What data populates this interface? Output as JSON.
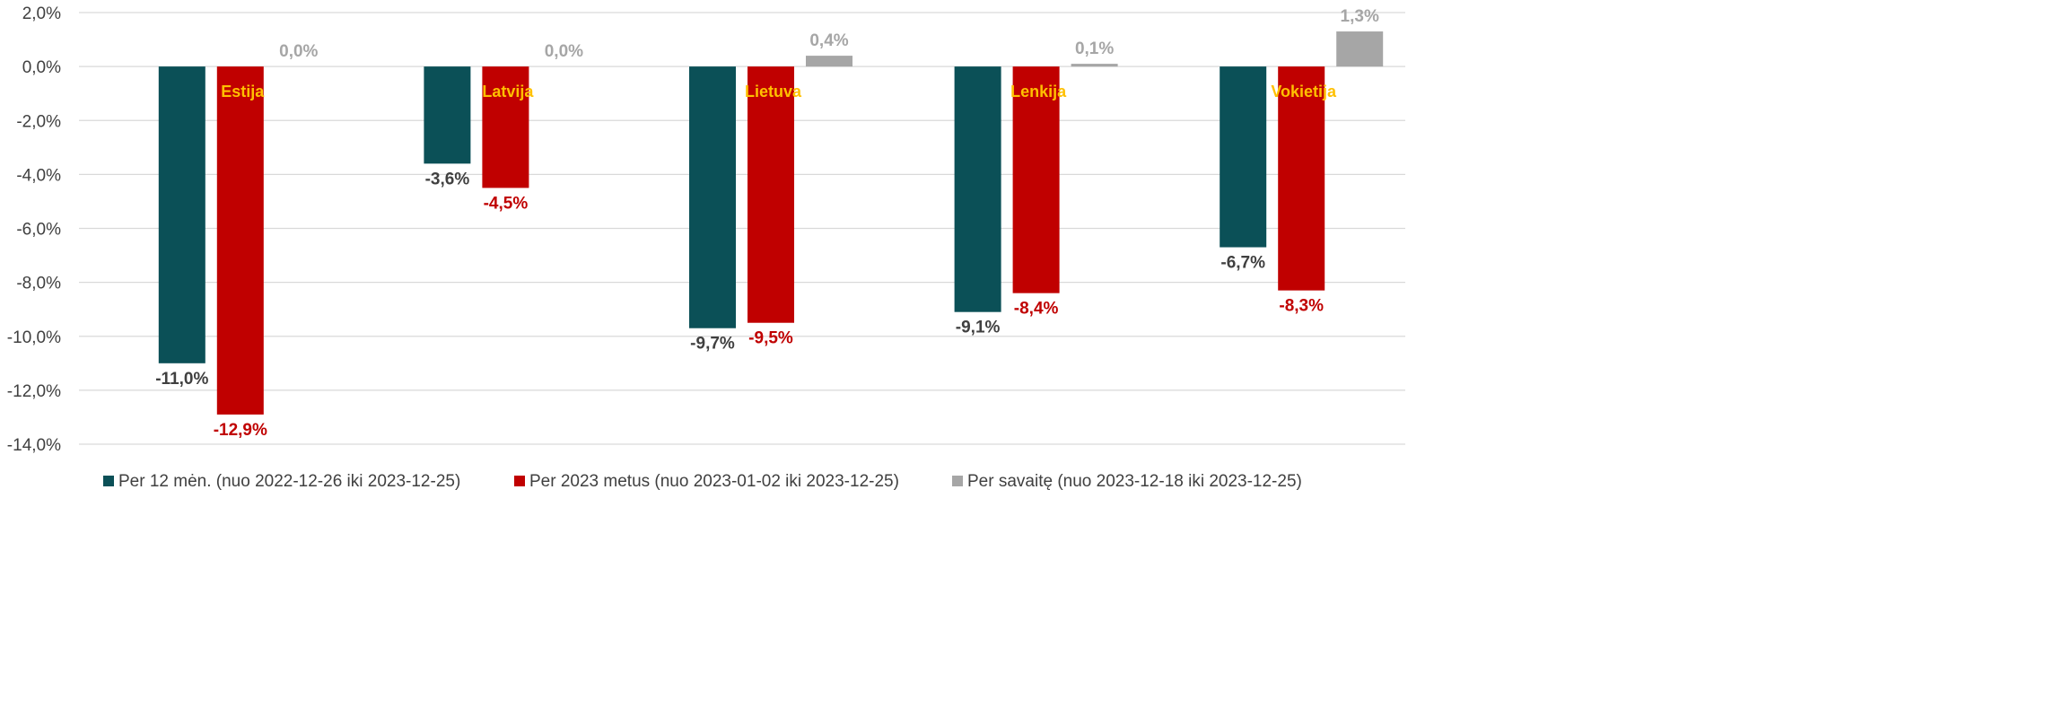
{
  "chart_data": {
    "type": "bar",
    "categories": [
      "Estija",
      "Latvija",
      "Lietuva",
      "Lenkija",
      "Vokietija"
    ],
    "series": [
      {
        "name": "Per 12 mėn. (nuo 2022-12-26 iki 2023-12-25)",
        "color": "#0B5057",
        "label_color": "#404040",
        "values": [
          -11.0,
          -3.6,
          -9.7,
          -9.1,
          -6.7
        ],
        "labels": [
          "-11,0%",
          "-3,6%",
          "-9,7%",
          "-9,1%",
          "-6,7%"
        ]
      },
      {
        "name": "Per 2023 metus (nuo 2023-01-02 iki 2023-12-25)",
        "color": "#C00000",
        "label_color": "#C00000",
        "values": [
          -12.9,
          -4.5,
          -9.5,
          -8.4,
          -8.3
        ],
        "labels": [
          "-12,9%",
          "-4,5%",
          "-9,5%",
          "-8,4%",
          "-8,3%"
        ]
      },
      {
        "name": "Per savaitę (nuo 2023-12-18 iki 2023-12-25)",
        "color": "#A6A6A6",
        "label_color": "#A6A6A6",
        "values": [
          0.0,
          0.0,
          0.4,
          0.1,
          1.3
        ],
        "labels": [
          "0,0%",
          "0,0%",
          "0,4%",
          "0,1%",
          "1,3%"
        ]
      }
    ],
    "category_label_color": "#FFC000",
    "ylim": [
      -14,
      2
    ],
    "yticks": [
      2,
      0,
      -2,
      -4,
      -6,
      -8,
      -10,
      -12,
      -14
    ],
    "ytick_labels": [
      "2,0%",
      "0,0%",
      "-2,0%",
      "-4,0%",
      "-6,0%",
      "-8,0%",
      "-10,0%",
      "-12,0%",
      "-14,0%"
    ],
    "grid": true,
    "legend_position": "bottom",
    "title": "",
    "xlabel": "",
    "ylabel": ""
  }
}
